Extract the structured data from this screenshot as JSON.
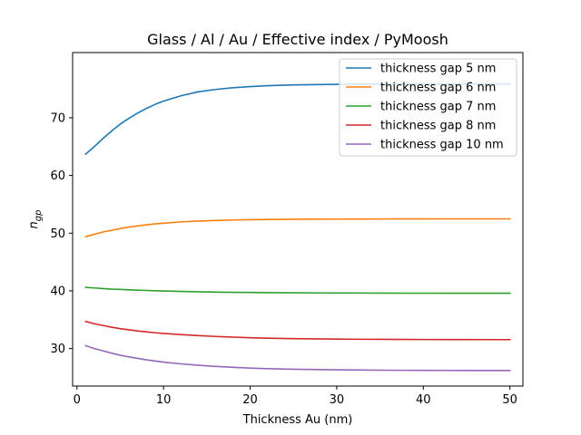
{
  "chart_data": {
    "type": "line",
    "title": "Glass / Al / Au / Effective index / PyMoosh",
    "xlabel": "Thickness Au (nm)",
    "ylabel": "n",
    "ylabel_subscript": "gp",
    "xlim": [
      -0.5,
      51.5
    ],
    "ylim": [
      23.5,
      81.3
    ],
    "xticks": [
      0,
      10,
      20,
      30,
      40,
      50
    ],
    "yticks": [
      30,
      40,
      50,
      60,
      70
    ],
    "x": [
      1,
      2,
      3,
      4,
      5,
      6,
      7,
      8,
      9,
      10,
      12,
      14,
      16,
      18,
      20,
      22,
      25,
      28,
      30,
      33,
      35,
      38,
      40,
      43,
      45,
      48,
      50
    ],
    "grid": false,
    "legend": "top-right",
    "series": [
      {
        "name": "thickness gap 5 nm",
        "color": "#1f77b4",
        "values": [
          63.7,
          65.0,
          66.4,
          67.7,
          68.9,
          69.9,
          70.8,
          71.6,
          72.3,
          72.9,
          73.8,
          74.5,
          74.9,
          75.2,
          75.4,
          75.55,
          75.7,
          75.75,
          75.8,
          75.82,
          75.84,
          75.85,
          75.86,
          75.86,
          75.87,
          75.87,
          75.87
        ]
      },
      {
        "name": "thickness gap 6 nm",
        "color": "#ff7f0e",
        "values": [
          49.4,
          49.8,
          50.2,
          50.5,
          50.8,
          51.05,
          51.25,
          51.45,
          51.6,
          51.72,
          51.95,
          52.1,
          52.2,
          52.28,
          52.33,
          52.37,
          52.41,
          52.43,
          52.44,
          52.45,
          52.46,
          52.47,
          52.47,
          52.48,
          52.48,
          52.48,
          52.48
        ]
      },
      {
        "name": "thickness gap 7 nm",
        "color": "#2ca02c",
        "values": [
          40.6,
          40.5,
          40.4,
          40.3,
          40.25,
          40.18,
          40.12,
          40.07,
          40.02,
          39.98,
          39.9,
          39.84,
          39.79,
          39.75,
          39.72,
          39.69,
          39.66,
          39.64,
          39.63,
          39.62,
          39.61,
          39.6,
          39.6,
          39.59,
          39.59,
          39.59,
          39.59
        ]
      },
      {
        "name": "thickness gap 8 nm",
        "color": "#d62728",
        "values": [
          34.7,
          34.3,
          34.0,
          33.7,
          33.45,
          33.25,
          33.05,
          32.9,
          32.75,
          32.62,
          32.42,
          32.25,
          32.1,
          31.98,
          31.88,
          31.8,
          31.72,
          31.67,
          31.64,
          31.61,
          31.6,
          31.58,
          31.57,
          31.56,
          31.56,
          31.55,
          31.55
        ]
      },
      {
        "name": "thickness gap 10 nm",
        "color": "#9467bd",
        "values": [
          30.5,
          30.0,
          29.6,
          29.2,
          28.85,
          28.55,
          28.3,
          28.05,
          27.85,
          27.65,
          27.35,
          27.1,
          26.9,
          26.75,
          26.62,
          26.52,
          26.42,
          26.35,
          26.31,
          26.27,
          26.25,
          26.23,
          26.22,
          26.21,
          26.2,
          26.2,
          26.2
        ]
      }
    ]
  }
}
